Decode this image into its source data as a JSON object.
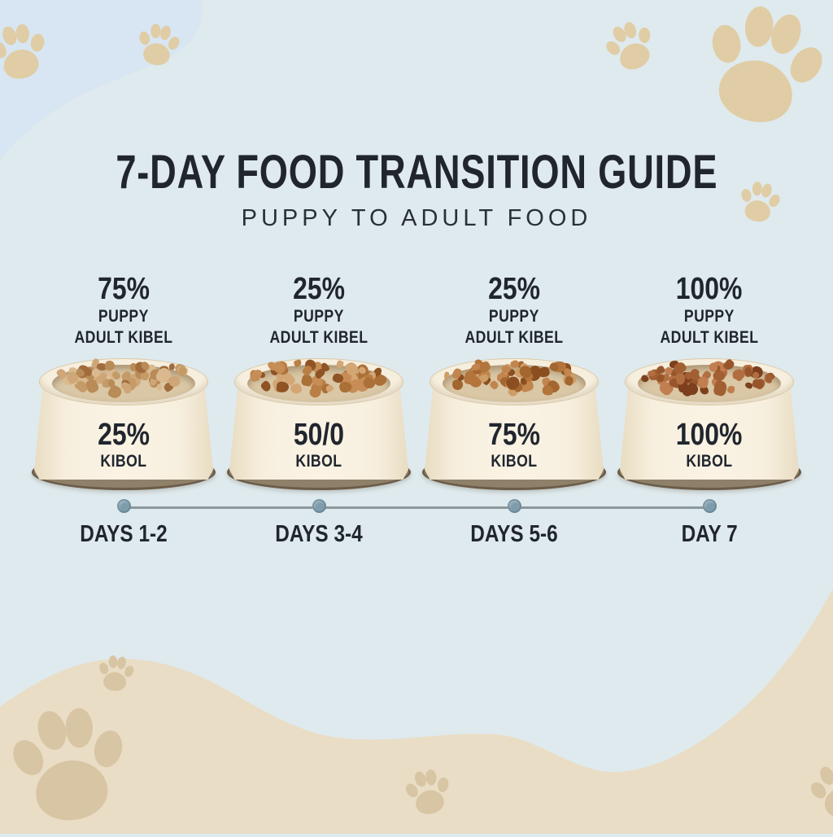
{
  "title": "7-DAY FOOD TRANSITION GUIDE",
  "subtitle": "PUPPY TO ADULT FOOD",
  "stages": [
    {
      "top_percent": "75%",
      "top_line1": "PUPPY",
      "top_line2": "ADULT KIBEL",
      "bowl_percent": "25%",
      "bowl_label": "KIBOL",
      "day_label": "DAYS 1-2",
      "kibble_colors": [
        "#cfa678",
        "#b98b56",
        "#a06c3d",
        "#dab98f",
        "#c49a67"
      ]
    },
    {
      "top_percent": "25%",
      "top_line1": "PUPPY",
      "top_line2": "ADULT KIBEL",
      "bowl_percent": "50/0",
      "bowl_label": "KIBOL",
      "day_label": "DAYS 3-4",
      "kibble_colors": [
        "#c68d57",
        "#ab6f38",
        "#8f5423",
        "#d3a674",
        "#b97f45"
      ]
    },
    {
      "top_percent": "25%",
      "top_line1": "PUPPY",
      "top_line2": "ADULT KIBEL",
      "bowl_percent": "75%",
      "bowl_label": "KIBOL",
      "day_label": "DAYS 5-6",
      "kibble_colors": [
        "#c2854e",
        "#a4662f",
        "#8a4e1f",
        "#cf9d68",
        "#b3753c"
      ]
    },
    {
      "top_percent": "100%",
      "top_line1": "PUPPY",
      "top_line2": "ADULT KIBEL",
      "bowl_percent": "100%",
      "bowl_label": "KIBOL",
      "day_label": "DAY 7",
      "kibble_colors": [
        "#b26e41",
        "#98552b",
        "#7d3f1c",
        "#c17e50",
        "#a25f31"
      ]
    }
  ],
  "colors": {
    "background": "#dfeaee",
    "corner_blob": "#d7e6f2",
    "paw_light": "#e0cda6",
    "bottom_band": "#e9ddc6",
    "paw_on_band": "#d8c5a3",
    "title_text": "#21262e",
    "body_text": "#2a3037",
    "timeline_line": "#8d989c",
    "timeline_dot": "#7e9cab",
    "bowl_cream": "#f7efde",
    "bowl_base": "#8e8069"
  }
}
